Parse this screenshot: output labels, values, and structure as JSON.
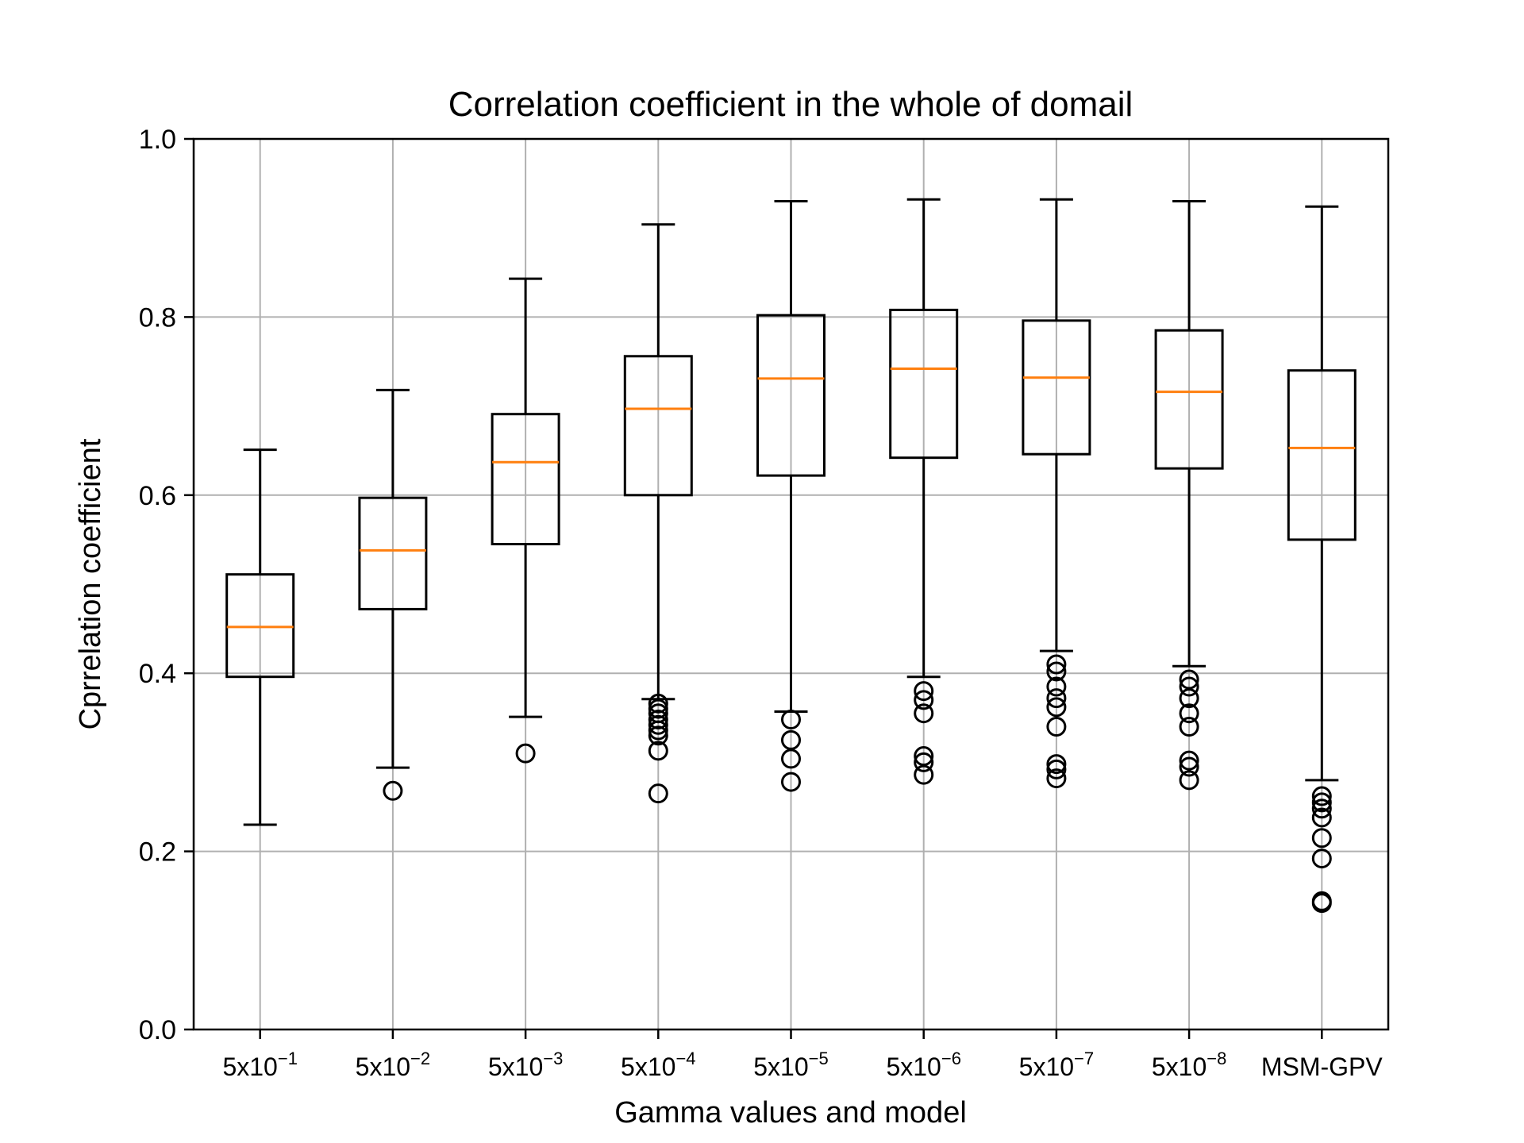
{
  "chart_data": {
    "type": "box",
    "title": "Correlation coefficient in the whole of domail",
    "xlabel": "Gamma values and model",
    "ylabel": "Cprrelation coefficient",
    "ylim": [
      0.0,
      1.0
    ],
    "yticks": [
      "0.0",
      "0.2",
      "0.4",
      "0.6",
      "0.8",
      "1.0"
    ],
    "grid": true,
    "colors": {
      "box": "#000000",
      "median": "#ff7f0e",
      "grid": "#b0b0b0"
    },
    "categories": [
      {
        "base": "5x10",
        "exp": "−1"
      },
      {
        "base": "5x10",
        "exp": "−2"
      },
      {
        "base": "5x10",
        "exp": "−3"
      },
      {
        "base": "5x10",
        "exp": "−4"
      },
      {
        "base": "5x10",
        "exp": "−5"
      },
      {
        "base": "5x10",
        "exp": "−6"
      },
      {
        "base": "5x10",
        "exp": "−7"
      },
      {
        "base": "5x10",
        "exp": "−8"
      },
      {
        "base": "MSM-GPV",
        "exp": ""
      }
    ],
    "boxes": [
      {
        "whislo": 0.23,
        "q1": 0.396,
        "med": 0.452,
        "q3": 0.511,
        "whishi": 0.651,
        "fliers": []
      },
      {
        "whislo": 0.294,
        "q1": 0.472,
        "med": 0.538,
        "q3": 0.597,
        "whishi": 0.718,
        "fliers": [
          0.268
        ]
      },
      {
        "whislo": 0.351,
        "q1": 0.545,
        "med": 0.637,
        "q3": 0.691,
        "whishi": 0.843,
        "fliers": [
          0.31
        ]
      },
      {
        "whislo": 0.371,
        "q1": 0.6,
        "med": 0.697,
        "q3": 0.756,
        "whishi": 0.904,
        "fliers": [
          0.366,
          0.36,
          0.355,
          0.348,
          0.342,
          0.336,
          0.33,
          0.313,
          0.265
        ]
      },
      {
        "whislo": 0.357,
        "q1": 0.622,
        "med": 0.731,
        "q3": 0.802,
        "whishi": 0.93,
        "fliers": [
          0.348,
          0.325,
          0.304,
          0.278
        ]
      },
      {
        "whislo": 0.396,
        "q1": 0.642,
        "med": 0.742,
        "q3": 0.808,
        "whishi": 0.932,
        "fliers": [
          0.38,
          0.37,
          0.355,
          0.307,
          0.3,
          0.286
        ]
      },
      {
        "whislo": 0.425,
        "q1": 0.646,
        "med": 0.732,
        "q3": 0.796,
        "whishi": 0.932,
        "fliers": [
          0.41,
          0.402,
          0.385,
          0.372,
          0.362,
          0.34,
          0.298,
          0.292,
          0.282
        ]
      },
      {
        "whislo": 0.408,
        "q1": 0.63,
        "med": 0.716,
        "q3": 0.785,
        "whishi": 0.93,
        "fliers": [
          0.393,
          0.385,
          0.372,
          0.355,
          0.34,
          0.302,
          0.295,
          0.28
        ]
      },
      {
        "whislo": 0.28,
        "q1": 0.55,
        "med": 0.653,
        "q3": 0.74,
        "whishi": 0.924,
        "fliers": [
          0.262,
          0.255,
          0.248,
          0.238,
          0.215,
          0.192,
          0.144,
          0.142
        ]
      }
    ]
  }
}
